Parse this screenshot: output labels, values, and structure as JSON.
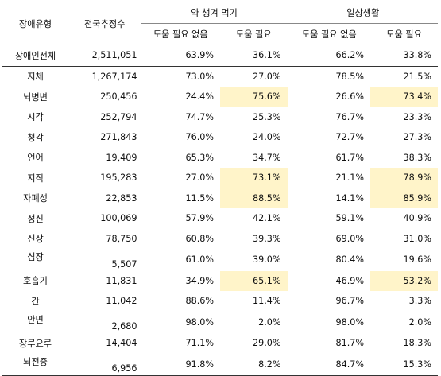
{
  "headers": {
    "type": "장애유형",
    "population": "전국추정수",
    "group_medication": "약 챙겨 먹기",
    "group_daily": "일상생활",
    "no_help": "도움 필요 없음",
    "help": "도움 필요"
  },
  "highlight_color": "#fff4c9",
  "rows": [
    {
      "type": "장애인전체",
      "population": "2,511,051",
      "med_no": "63.9%",
      "med_help": "36.1%",
      "daily_no": "66.2%",
      "daily_help": "33.8%",
      "med_hl": false,
      "daily_hl": false,
      "total": true
    },
    {
      "type": "지체",
      "population": "1,267,174",
      "med_no": "73.0%",
      "med_help": "27.0%",
      "daily_no": "78.5%",
      "daily_help": "21.5%",
      "med_hl": false,
      "daily_hl": false
    },
    {
      "type": "뇌병변",
      "population": "250,456",
      "med_no": "24.4%",
      "med_help": "75.6%",
      "daily_no": "26.6%",
      "daily_help": "73.4%",
      "med_hl": true,
      "daily_hl": true
    },
    {
      "type": "시각",
      "population": "252,794",
      "med_no": "74.7%",
      "med_help": "25.3%",
      "daily_no": "76.7%",
      "daily_help": "23.3%",
      "med_hl": false,
      "daily_hl": false
    },
    {
      "type": "청각",
      "population": "271,843",
      "med_no": "76.0%",
      "med_help": "24.0%",
      "daily_no": "72.7%",
      "daily_help": "27.3%",
      "med_hl": false,
      "daily_hl": false
    },
    {
      "type": "언어",
      "population": "19,409",
      "med_no": "65.3%",
      "med_help": "34.7%",
      "daily_no": "61.7%",
      "daily_help": "38.3%",
      "med_hl": false,
      "daily_hl": false
    },
    {
      "type": "지적",
      "population": "195,283",
      "med_no": "27.0%",
      "med_help": "73.1%",
      "daily_no": "21.1%",
      "daily_help": "78.9%",
      "med_hl": true,
      "daily_hl": true
    },
    {
      "type": "자폐성",
      "population": "22,853",
      "med_no": "11.5%",
      "med_help": "88.5%",
      "daily_no": "14.1%",
      "daily_help": "85.9%",
      "med_hl": true,
      "daily_hl": true
    },
    {
      "type": "정신",
      "population": "100,069",
      "med_no": "57.9%",
      "med_help": "42.1%",
      "daily_no": "59.1%",
      "daily_help": "40.9%",
      "med_hl": false,
      "daily_hl": false
    },
    {
      "type": "신장",
      "population": "78,750",
      "med_no": "60.8%",
      "med_help": "39.3%",
      "daily_no": "69.0%",
      "daily_help": "31.0%",
      "med_hl": false,
      "daily_hl": false
    },
    {
      "type": "심장",
      "population": "5,507",
      "med_no": "61.0%",
      "med_help": "39.0%",
      "daily_no": "80.4%",
      "daily_help": "19.6%",
      "med_hl": false,
      "daily_hl": false,
      "low": true
    },
    {
      "type": "호흡기",
      "population": "11,831",
      "med_no": "34.9%",
      "med_help": "65.1%",
      "daily_no": "46.9%",
      "daily_help": "53.2%",
      "med_hl": true,
      "daily_hl": true
    },
    {
      "type": "간",
      "population": "11,042",
      "med_no": "88.6%",
      "med_help": "11.4%",
      "daily_no": "96.7%",
      "daily_help": "3.3%",
      "med_hl": false,
      "daily_hl": false
    },
    {
      "type": "안면",
      "population": "2,680",
      "med_no": "98.0%",
      "med_help": "2.0%",
      "daily_no": "98.0%",
      "daily_help": "2.0%",
      "med_hl": false,
      "daily_hl": false,
      "low": true
    },
    {
      "type": "장루요루",
      "population": "14,404",
      "med_no": "71.1%",
      "med_help": "29.0%",
      "daily_no": "81.7%",
      "daily_help": "18.3%",
      "med_hl": false,
      "daily_hl": false
    },
    {
      "type": "뇌전증",
      "population": "6,956",
      "med_no": "91.8%",
      "med_help": "8.2%",
      "daily_no": "84.7%",
      "daily_help": "15.3%",
      "med_hl": false,
      "daily_hl": false,
      "low": true
    }
  ]
}
